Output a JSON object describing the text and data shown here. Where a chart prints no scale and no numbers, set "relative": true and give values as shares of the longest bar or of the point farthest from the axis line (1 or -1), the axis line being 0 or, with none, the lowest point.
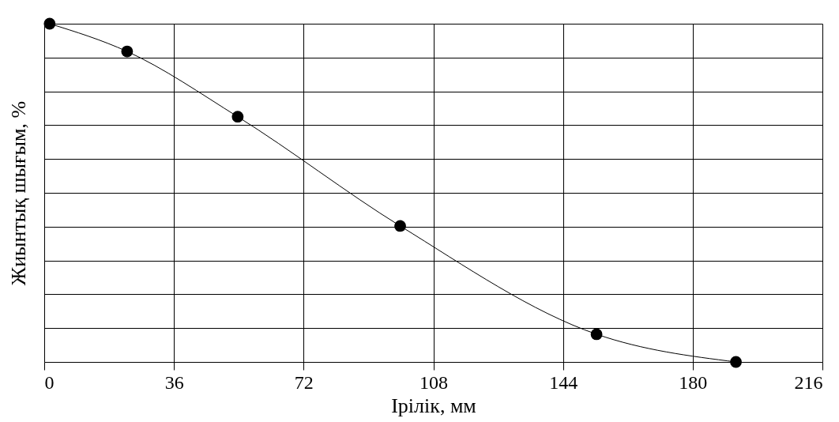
{
  "chart_data": {
    "type": "line",
    "xlabel": "Ірілік, мм",
    "ylabel": "Жиынтық шығым, %",
    "x": [
      1.5,
      23,
      53.7,
      98.8,
      153.3,
      192
    ],
    "series": [
      {
        "color": "#000000",
        "values": [
          1,
          0.918,
          0.725,
          0.402,
          0.082,
          0
        ]
      }
    ],
    "relative": true,
    "xlim": [
      0,
      216
    ],
    "xticks": [
      0,
      36,
      72,
      108,
      144,
      180,
      216
    ],
    "grid": true,
    "marker": "circle",
    "line_style": "solid"
  }
}
